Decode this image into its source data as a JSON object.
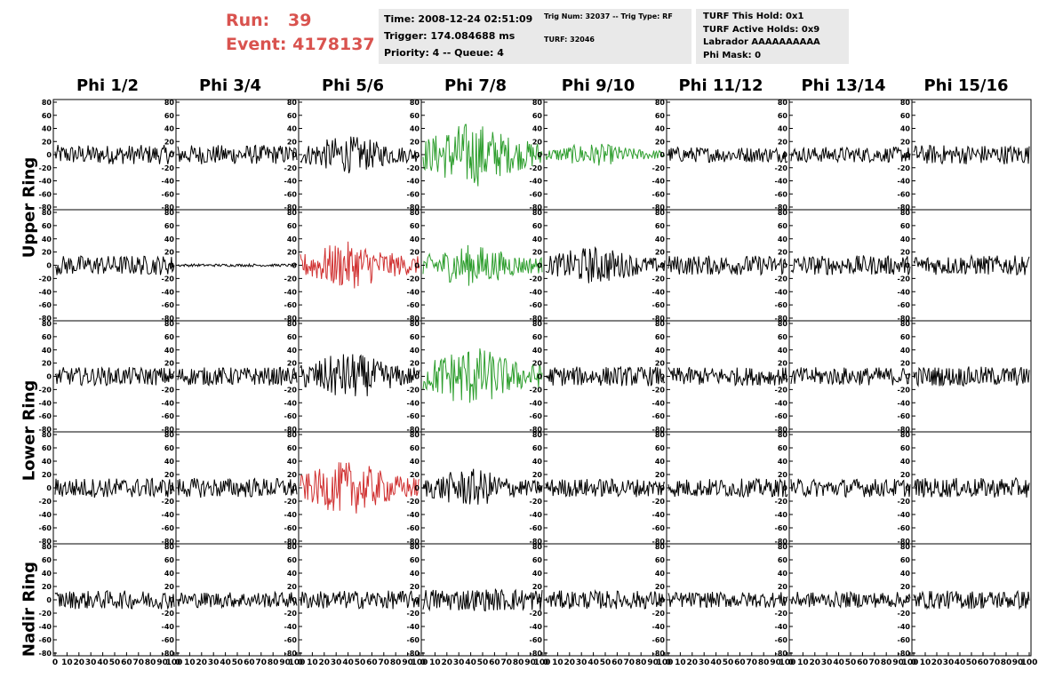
{
  "header": {
    "run_label": "Run:",
    "run_value": "39",
    "event_label": "Event:",
    "event_value": "4178137",
    "run_color": "#d9534f"
  },
  "time_panel": {
    "time": "Time: 2008-12-24 02:51:09",
    "trigger": "Trigger: 174.084688 ms",
    "priority": "Priority: 4 -- Queue: 4"
  },
  "trig_panel": {
    "line1": "Trig Num: 32037 -- Trig Type: RF",
    "line2": "TURF: 32046"
  },
  "turf_panel": {
    "this_hold": "TURF This Hold: 0x1",
    "active_holds": "TURF Active Holds: 0x9",
    "labrador": "Labrador AAAAAAAAAA",
    "phi_mask": "Phi Mask: 0"
  },
  "columns": [
    "Phi 1/2",
    "Phi 3/4",
    "Phi 5/6",
    "Phi 7/8",
    "Phi 9/10",
    "Phi 11/12",
    "Phi 13/14",
    "Phi 15/16"
  ],
  "rings": [
    {
      "label": "Upper Ring"
    },
    {
      "label": "Lower Ring"
    },
    {
      "label": "Nadir Ring"
    }
  ],
  "y_ticks": [
    "80",
    "60",
    "40",
    "20",
    "0",
    "-20",
    "-40",
    "-60",
    "-80"
  ],
  "x_ticks": [
    "0",
    "10",
    "20",
    "30",
    "40",
    "50",
    "60",
    "70",
    "80",
    "90",
    "100"
  ],
  "colors": {
    "black": "#000000",
    "green": "#2e9e2e",
    "red": "#d03030"
  },
  "traces": [
    [
      "black",
      "black",
      "black",
      "green",
      "green",
      "black",
      "black",
      "black"
    ],
    [
      "black",
      "black",
      "red",
      "green",
      "black",
      "black",
      "black",
      "black"
    ],
    [
      "black",
      "black",
      "black",
      "green",
      "black",
      "black",
      "black",
      "black"
    ],
    [
      "black",
      "black",
      "red",
      "black",
      "black",
      "black",
      "black",
      "black"
    ],
    [
      "black",
      "black",
      "black",
      "black",
      "black",
      "black",
      "black",
      "black"
    ]
  ],
  "amplitudes": [
    [
      15,
      15,
      20,
      35,
      12,
      12,
      12,
      15
    ],
    [
      15,
      2,
      25,
      22,
      20,
      15,
      15,
      15
    ],
    [
      14,
      14,
      25,
      32,
      15,
      14,
      14,
      15
    ],
    [
      15,
      15,
      28,
      20,
      14,
      14,
      14,
      15
    ],
    [
      14,
      12,
      14,
      17,
      14,
      12,
      12,
      14
    ]
  ]
}
